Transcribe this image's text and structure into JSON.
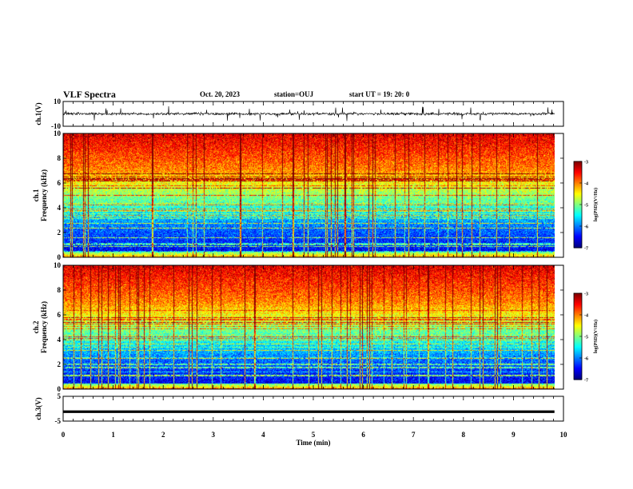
{
  "header": {
    "title": "VLF Spectra",
    "date": "Oct. 20, 2023",
    "station": "station=OUJ",
    "start": "start UT =  19: 20: 0"
  },
  "chart_data": [
    {
      "type": "line",
      "name": "ch1-waveform",
      "ylabel": "ch.1(V)",
      "ylim": [
        -10,
        10
      ],
      "ytick_labels": [
        "10",
        "-10"
      ],
      "xlim": [
        0,
        10
      ],
      "x_extent_min": [
        0,
        9.82
      ],
      "baseline_v": 0,
      "noise_amplitude_v": 2
    },
    {
      "type": "heatmap",
      "name": "ch1-spectrogram",
      "ylabel_line1": "ch.1",
      "ylabel_line2": "Frequency (kHz)",
      "ylim": [
        0,
        10
      ],
      "ytick_labels": [
        "0",
        "2",
        "4",
        "6",
        "8",
        "10"
      ],
      "xlim": [
        0,
        10
      ],
      "x_extent_min": [
        0,
        9.82
      ],
      "colorbar": {
        "range": [
          -7,
          -3
        ],
        "tick_labels": [
          "-3",
          "-4",
          "-5",
          "-6",
          "-7"
        ],
        "label": "log(PSD)(V²/Hz)"
      }
    },
    {
      "type": "heatmap",
      "name": "ch2-spectrogram",
      "ylabel_line1": "ch.2",
      "ylabel_line2": "Frequency (kHz)",
      "ylim": [
        0,
        10
      ],
      "ytick_labels": [
        "0",
        "2",
        "4",
        "6",
        "8",
        "10"
      ],
      "xlim": [
        0,
        10
      ],
      "x_extent_min": [
        0,
        9.82
      ],
      "colorbar": {
        "range": [
          -7,
          -3
        ],
        "tick_labels": [
          "-3",
          "-4",
          "-5",
          "-6",
          "-7"
        ],
        "label": "log(PSD)(V²/Hz)"
      }
    },
    {
      "type": "line",
      "name": "ch3-waveform",
      "ylabel": "ch.3(V)",
      "ylim": [
        -5,
        5
      ],
      "ytick_labels": [
        "5",
        "-5"
      ],
      "xlim": [
        0,
        10
      ],
      "x_extent_min": [
        0,
        9.82
      ],
      "baseline_v": -1.2,
      "xlabel": "Time (min)",
      "xtick_labels": [
        "0",
        "1",
        "2",
        "3",
        "4",
        "5",
        "6",
        "7",
        "8",
        "9",
        "10"
      ]
    }
  ]
}
